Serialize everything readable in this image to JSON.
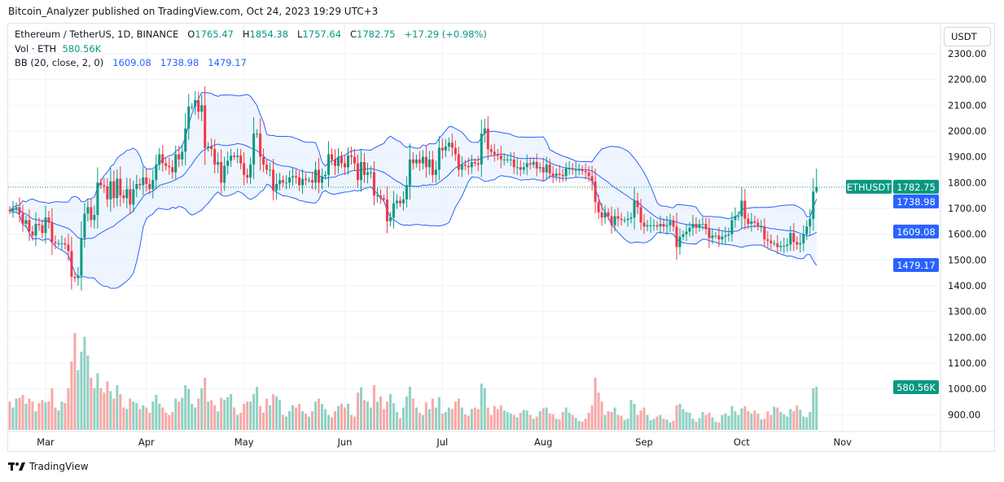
{
  "header": {
    "publisher_line": "Bitcoin_Analyzer published on TradingView.com, Oct 24, 2023 19:29 UTC+3"
  },
  "legend": {
    "symbol": "Ethereum / TetherUS, 1D, BINANCE",
    "o_label": "O",
    "open": "1765.47",
    "h_label": "H",
    "high": "1854.38",
    "l_label": "L",
    "low": "1757.64",
    "c_label": "C",
    "close": "1782.75",
    "change": "+17.29 (+0.98%)",
    "vol_label": "Vol · ETH",
    "vol_value": "580.56K",
    "bb_label": "BB (20, close, 2, 0)",
    "bb_basis": "1609.08",
    "bb_upper": "1738.98",
    "bb_lower": "1479.17"
  },
  "axis": {
    "currency": "USDT"
  },
  "badges": {
    "symbol": "ETHUSDT",
    "price": "1782.75",
    "bb_upper": "1738.98",
    "bb_basis": "1609.08",
    "bb_lower": "1479.17",
    "volume": "580.56K"
  },
  "footer": {
    "brand": "TradingView"
  },
  "colors": {
    "up": "#089981",
    "down": "#f23645",
    "band": "#2962ff",
    "band_fill": "#e3effd",
    "vol_up": "#8fd1c4",
    "vol_down": "#f7a9a7"
  },
  "chart_data": {
    "type": "candlestick",
    "interval": "1D",
    "start_date": "2023-02-18",
    "end_date": "2023-10-24",
    "ylim": [
      850,
      2350
    ],
    "y_ticks": [
      2300,
      2200,
      2100,
      2000,
      1900,
      1800,
      1700,
      1600,
      1500,
      1400,
      1300,
      1200,
      1100,
      1000,
      900
    ],
    "x_ticks": [
      {
        "label": "Mar",
        "date": "2023-03-01"
      },
      {
        "label": "Apr",
        "date": "2023-04-01"
      },
      {
        "label": "May",
        "date": "2023-05-01"
      },
      {
        "label": "Jun",
        "date": "2023-06-01"
      },
      {
        "label": "Jul",
        "date": "2023-07-01"
      },
      {
        "label": "Aug",
        "date": "2023-08-01"
      },
      {
        "label": "Sep",
        "date": "2023-09-01"
      },
      {
        "label": "Oct",
        "date": "2023-10-01"
      },
      {
        "label": "Nov",
        "date": "2023-11-01"
      }
    ],
    "first_open": 1695,
    "last_high": 1854.38,
    "last_low": 1757.64,
    "bollinger": {
      "period": 20,
      "stddev": 2
    },
    "closes": [
      1690,
      1700,
      1705,
      1680,
      1640,
      1655,
      1610,
      1595,
      1640,
      1635,
      1605,
      1665,
      1645,
      1570,
      1565,
      1565,
      1565,
      1560,
      1535,
      1435,
      1430,
      1440,
      1585,
      1680,
      1705,
      1655,
      1675,
      1800,
      1790,
      1785,
      1735,
      1805,
      1740,
      1815,
      1750,
      1740,
      1775,
      1715,
      1775,
      1795,
      1790,
      1820,
      1795,
      1775,
      1810,
      1870,
      1910,
      1875,
      1865,
      1860,
      1840,
      1910,
      1890,
      1920,
      2010,
      2095,
      2095,
      2120,
      2075,
      2100,
      1935,
      1940,
      1930,
      1870,
      1880,
      1800,
      1865,
      1885,
      1905,
      1900,
      1905,
      1875,
      1830,
      1820,
      1870,
      1990,
      1990,
      1900,
      1870,
      1850,
      1850,
      1770,
      1795,
      1810,
      1800,
      1800,
      1820,
      1825,
      1820,
      1790,
      1815,
      1810,
      1810,
      1800,
      1850,
      1800,
      1825,
      1830,
      1910,
      1890,
      1865,
      1900,
      1875,
      1860,
      1905,
      1900,
      1875,
      1810,
      1880,
      1830,
      1840,
      1840,
      1750,
      1750,
      1740,
      1735,
      1650,
      1665,
      1720,
      1730,
      1720,
      1735,
      1790,
      1890,
      1875,
      1890,
      1875,
      1900,
      1860,
      1890,
      1830,
      1850,
      1935,
      1925,
      1940,
      1955,
      1935,
      1910,
      1850,
      1870,
      1865,
      1860,
      1880,
      1875,
      1870,
      1990,
      2010,
      1930,
      1920,
      1910,
      1905,
      1890,
      1890,
      1890,
      1890,
      1860,
      1860,
      1850,
      1860,
      1875,
      1870,
      1880,
      1855,
      1860,
      1840,
      1870,
      1835,
      1825,
      1835,
      1830,
      1825,
      1855,
      1855,
      1850,
      1850,
      1850,
      1845,
      1840,
      1825,
      1805,
      1725,
      1685,
      1665,
      1685,
      1670,
      1635,
      1670,
      1660,
      1655,
      1655,
      1660,
      1665,
      1730,
      1705,
      1645,
      1630,
      1635,
      1635,
      1635,
      1630,
      1640,
      1630,
      1635,
      1650,
      1630,
      1550,
      1590,
      1600,
      1610,
      1625,
      1640,
      1625,
      1640,
      1640,
      1620,
      1585,
      1595,
      1595,
      1580,
      1590,
      1595,
      1600,
      1655,
      1670,
      1670,
      1730,
      1660,
      1640,
      1650,
      1645,
      1630,
      1630,
      1580,
      1575,
      1565,
      1565,
      1550,
      1555,
      1555,
      1560,
      1605,
      1570,
      1560,
      1565,
      1600,
      1630,
      1660,
      1765.47,
      1782.75
    ],
    "volumes_k": [
      380,
      300,
      420,
      430,
      470,
      350,
      420,
      380,
      250,
      360,
      400,
      370,
      380,
      560,
      300,
      260,
      380,
      360,
      560,
      920,
      1300,
      800,
      1050,
      1250,
      1000,
      700,
      560,
      760,
      560,
      500,
      650,
      520,
      420,
      600,
      480,
      300,
      280,
      420,
      380,
      360,
      280,
      330,
      300,
      230,
      380,
      470,
      350,
      300,
      230,
      200,
      240,
      420,
      380,
      430,
      600,
      550,
      350,
      300,
      420,
      560,
      700,
      380,
      400,
      330,
      250,
      430,
      400,
      440,
      480,
      300,
      200,
      230,
      350,
      380,
      380,
      480,
      580,
      320,
      230,
      420,
      330,
      480,
      450,
      400,
      200,
      180,
      250,
      330,
      300,
      350,
      250,
      220,
      180,
      250,
      380,
      420,
      350,
      280,
      200,
      170,
      250,
      320,
      350,
      300,
      350,
      200,
      180,
      500,
      570,
      400,
      380,
      300,
      600,
      380,
      450,
      280,
      380,
      480,
      360,
      240,
      160,
      300,
      450,
      580,
      420,
      300,
      230,
      200,
      370,
      280,
      420,
      300,
      440,
      220,
      240,
      300,
      280,
      380,
      420,
      300,
      210,
      190,
      280,
      300,
      280,
      620,
      560,
      300,
      200,
      320,
      280,
      330,
      260,
      240,
      220,
      200,
      170,
      230,
      270,
      260,
      200,
      150,
      180,
      250,
      290,
      300,
      220,
      210,
      150,
      140,
      240,
      300,
      230,
      200,
      160,
      120,
      110,
      150,
      230,
      330,
      700,
      500,
      380,
      200,
      250,
      240,
      300,
      200,
      190,
      130,
      150,
      400,
      350,
      200,
      260,
      300,
      200,
      130,
      150,
      180,
      200,
      150,
      140,
      100,
      120,
      330,
      350,
      280,
      240,
      230,
      150,
      110,
      160,
      240,
      200,
      230,
      170,
      110,
      100,
      200,
      220,
      190,
      320,
      250,
      200,
      290,
      320,
      250,
      220,
      260,
      220,
      140,
      150,
      250,
      200,
      310,
      300,
      240,
      210,
      180,
      280,
      250,
      330,
      270,
      180,
      170,
      240,
      560,
      580.56
    ]
  }
}
